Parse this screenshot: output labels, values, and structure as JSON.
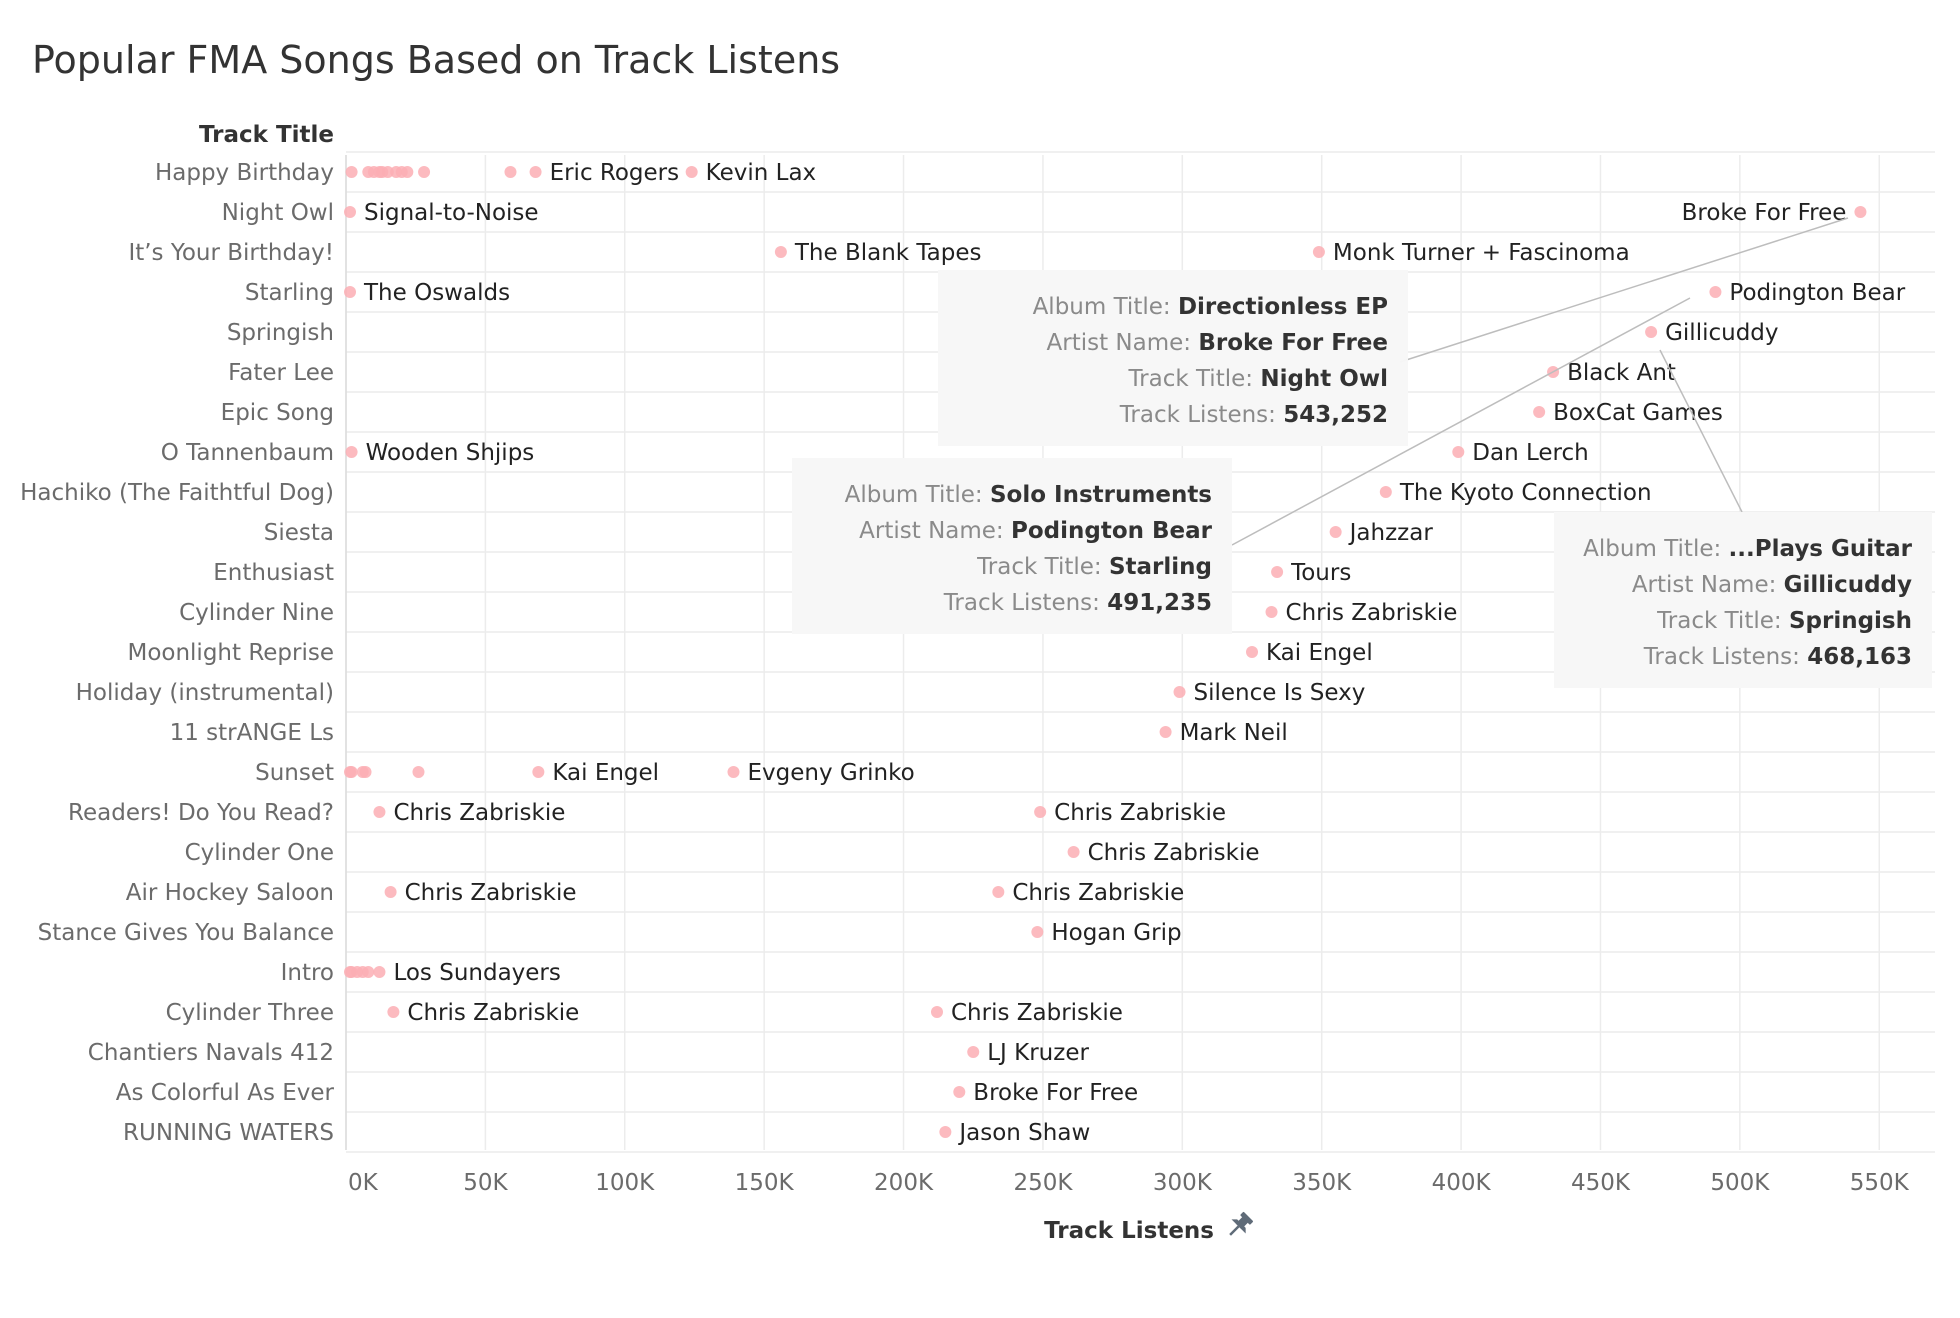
{
  "title": "Popular FMA Songs Based on Track Listens",
  "colors": {
    "point": "#fcaeb4",
    "grid": "#ececec",
    "axis_text": "#6b6b6b",
    "label_text": "#222222",
    "tooltip_bg": "#f7f7f7",
    "pin": "#5f6b78"
  },
  "icons": {
    "pin": "pin-icon"
  },
  "chart_data": {
    "type": "scatter",
    "orientation": "horizontal",
    "xlabel": "Track Listens",
    "ylabel": "Track Title",
    "xlim": [
      0,
      570000
    ],
    "x_ticks": [
      0,
      50000,
      100000,
      150000,
      200000,
      250000,
      300000,
      350000,
      400000,
      450000,
      500000,
      550000
    ],
    "x_tick_labels": [
      "0K",
      "50K",
      "100K",
      "150K",
      "200K",
      "250K",
      "300K",
      "350K",
      "400K",
      "450K",
      "500K",
      "550K"
    ],
    "grid": true,
    "categories": [
      "Happy Birthday",
      "Night Owl",
      "It’s Your Birthday!",
      "Starling",
      "Springish",
      "Fater Lee",
      "Epic Song",
      "O Tannenbaum",
      "Hachiko (The Faithtful Dog)",
      "Siesta",
      "Enthusiast",
      "Cylinder Nine",
      "Moonlight Reprise",
      "Holiday (instrumental)",
      "11 strANGE Ls",
      "Sunset",
      "Readers! Do You Read?",
      "Cylinder One",
      "Air Hockey Saloon",
      "Stance Gives You Balance",
      "Intro",
      "Cylinder Three",
      "Chantiers Navals 412",
      "As Colorful As Ever",
      "RUNNING WATERS"
    ],
    "points": [
      {
        "track": "Happy Birthday",
        "listens": 2000
      },
      {
        "track": "Happy Birthday",
        "listens": 8000
      },
      {
        "track": "Happy Birthday",
        "listens": 10000
      },
      {
        "track": "Happy Birthday",
        "listens": 12000
      },
      {
        "track": "Happy Birthday",
        "listens": 13000
      },
      {
        "track": "Happy Birthday",
        "listens": 15000
      },
      {
        "track": "Happy Birthday",
        "listens": 18000
      },
      {
        "track": "Happy Birthday",
        "listens": 20000
      },
      {
        "track": "Happy Birthday",
        "listens": 22000
      },
      {
        "track": "Happy Birthday",
        "listens": 28000
      },
      {
        "track": "Happy Birthday",
        "listens": 59000
      },
      {
        "track": "Happy Birthday",
        "listens": 68000,
        "artist": "Eric Rogers"
      },
      {
        "track": "Happy Birthday",
        "listens": 124000,
        "artist": "Kevin Lax"
      },
      {
        "track": "Night Owl",
        "listens": 1000,
        "artist": "Signal-to-Noise"
      },
      {
        "track": "Night Owl",
        "listens": 543252,
        "artist": "Broke For Free",
        "label_side": "left"
      },
      {
        "track": "It’s Your Birthday!",
        "listens": 156000,
        "artist": "The Blank Tapes"
      },
      {
        "track": "It’s Your Birthday!",
        "listens": 349000,
        "artist": "Monk Turner + Fascinoma"
      },
      {
        "track": "Starling",
        "listens": 1000,
        "artist": "The Oswalds"
      },
      {
        "track": "Starling",
        "listens": 491235,
        "artist": "Podington Bear"
      },
      {
        "track": "Springish",
        "listens": 468163,
        "artist": "Gillicuddy"
      },
      {
        "track": "Fater Lee",
        "listens": 433000,
        "artist": "Black Ant"
      },
      {
        "track": "Epic Song",
        "listens": 428000,
        "artist": "BoxCat Games"
      },
      {
        "track": "O Tannenbaum",
        "listens": 2000,
        "artist": "Wooden Shjips"
      },
      {
        "track": "O Tannenbaum",
        "listens": 399000,
        "artist": "Dan Lerch"
      },
      {
        "track": "Hachiko (The Faithtful Dog)",
        "listens": 373000,
        "artist": "The Kyoto Connection"
      },
      {
        "track": "Siesta",
        "listens": 355000,
        "artist": "Jahzzar"
      },
      {
        "track": "Enthusiast",
        "listens": 334000,
        "artist": "Tours"
      },
      {
        "track": "Cylinder Nine",
        "listens": 332000,
        "artist": "Chris Zabriskie"
      },
      {
        "track": "Moonlight Reprise",
        "listens": 325000,
        "artist": "Kai Engel"
      },
      {
        "track": "Holiday (instrumental)",
        "listens": 299000,
        "artist": "Silence Is Sexy"
      },
      {
        "track": "11 strANGE Ls",
        "listens": 294000,
        "artist": "Mark Neil"
      },
      {
        "track": "Sunset",
        "listens": 0
      },
      {
        "track": "Sunset",
        "listens": 2000
      },
      {
        "track": "Sunset",
        "listens": 6000
      },
      {
        "track": "Sunset",
        "listens": 7000
      },
      {
        "track": "Sunset",
        "listens": 26000
      },
      {
        "track": "Sunset",
        "listens": 69000,
        "artist": "Kai Engel"
      },
      {
        "track": "Sunset",
        "listens": 139000,
        "artist": "Evgeny Grinko"
      },
      {
        "track": "Readers! Do You Read?",
        "listens": 12000,
        "artist": "Chris Zabriskie"
      },
      {
        "track": "Readers! Do You Read?",
        "listens": 249000,
        "artist": "Chris Zabriskie"
      },
      {
        "track": "Cylinder One",
        "listens": 261000,
        "artist": "Chris Zabriskie"
      },
      {
        "track": "Air Hockey Saloon",
        "listens": 16000,
        "artist": "Chris Zabriskie"
      },
      {
        "track": "Air Hockey Saloon",
        "listens": 234000,
        "artist": "Chris Zabriskie"
      },
      {
        "track": "Stance Gives You Balance",
        "listens": 248000,
        "artist": "Hogan Grip"
      },
      {
        "track": "Intro",
        "listens": 0
      },
      {
        "track": "Intro",
        "listens": 2000
      },
      {
        "track": "Intro",
        "listens": 4000
      },
      {
        "track": "Intro",
        "listens": 6000
      },
      {
        "track": "Intro",
        "listens": 8000
      },
      {
        "track": "Intro",
        "listens": 12000,
        "artist": "Los Sundayers"
      },
      {
        "track": "Cylinder Three",
        "listens": 17000,
        "artist": "Chris Zabriskie"
      },
      {
        "track": "Cylinder Three",
        "listens": 212000,
        "artist": "Chris Zabriskie"
      },
      {
        "track": "Chantiers Navals 412",
        "listens": 225000,
        "artist": "LJ Kruzer"
      },
      {
        "track": "As Colorful As Ever",
        "listens": 220000,
        "artist": "Broke For Free"
      },
      {
        "track": "RUNNING WATERS",
        "listens": 215000,
        "artist": "Jason Shaw"
      }
    ],
    "annotations": [
      {
        "id": "night-owl",
        "anchor_track": "Night Owl",
        "anchor_listens": 543252,
        "rows": [
          {
            "key": "Album Title:",
            "value": "Directionless EP"
          },
          {
            "key": "Artist Name:",
            "value": "Broke For Free"
          },
          {
            "key": "Track Title:",
            "value": "Night Owl"
          },
          {
            "key": "Track Listens:",
            "value": "543,252"
          }
        ]
      },
      {
        "id": "starling",
        "anchor_track": "Starling",
        "anchor_listens": 491235,
        "rows": [
          {
            "key": "Album Title:",
            "value": "Solo Instruments"
          },
          {
            "key": "Artist Name:",
            "value": "Podington Bear"
          },
          {
            "key": "Track Title:",
            "value": "Starling"
          },
          {
            "key": "Track Listens:",
            "value": "491,235"
          }
        ]
      },
      {
        "id": "springish",
        "anchor_track": "Springish",
        "anchor_listens": 468163,
        "rows": [
          {
            "key": "Album Title:",
            "value": "...Plays Guitar"
          },
          {
            "key": "Artist Name:",
            "value": "Gillicuddy"
          },
          {
            "key": "Track Title:",
            "value": "Springish"
          },
          {
            "key": "Track Listens:",
            "value": "468,163"
          }
        ]
      }
    ]
  }
}
